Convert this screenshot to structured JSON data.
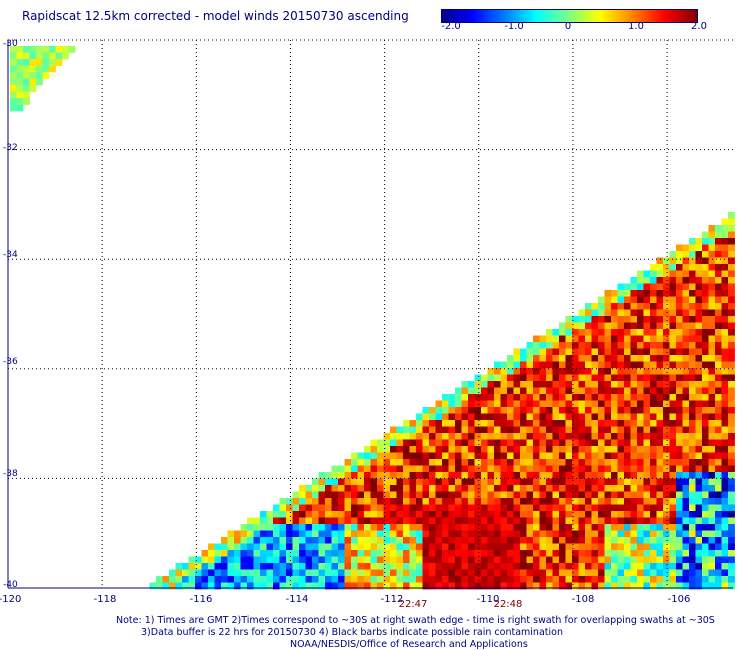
{
  "title": "Rapidscat 12.5km corrected - model winds 20150730 ascending",
  "colorbar": {
    "tick_labels": [
      "-2.0",
      "-1.0",
      "0",
      "1.0",
      "2.0"
    ],
    "range": [
      -2.0,
      2.0
    ],
    "colors": [
      "#00008c",
      "#0000ff",
      "#0080ff",
      "#00ffff",
      "#80ff80",
      "#ffff00",
      "#ff8000",
      "#ff0000",
      "#800000"
    ]
  },
  "map": {
    "lon_range": [
      -120,
      -104.6
    ],
    "lat_range": [
      -40,
      -30
    ],
    "lon_ticks": [
      "-120",
      "-118",
      "-116",
      "-114",
      "-112",
      "-110",
      "-108",
      "-106"
    ],
    "lat_ticks": [
      "-30",
      "-32",
      "-34",
      "-36",
      "-38",
      "-40"
    ],
    "gridlines": true,
    "time_labels": [
      {
        "text": "22:47",
        "lon": -111.4
      },
      {
        "text": "22:48",
        "lon": -109.4
      }
    ]
  },
  "notes": {
    "line1": "Note: 1) Times are GMT 2)Times correspond to ~30S at right swath edge - time is right swath for overlapping swaths at ~30S",
    "line2": "3)Data buffer is 22 hrs for 20150730 4) Black barbs indicate possible rain contamination",
    "line3": "NOAA/NESDIS/Office of Research and Applications"
  }
}
